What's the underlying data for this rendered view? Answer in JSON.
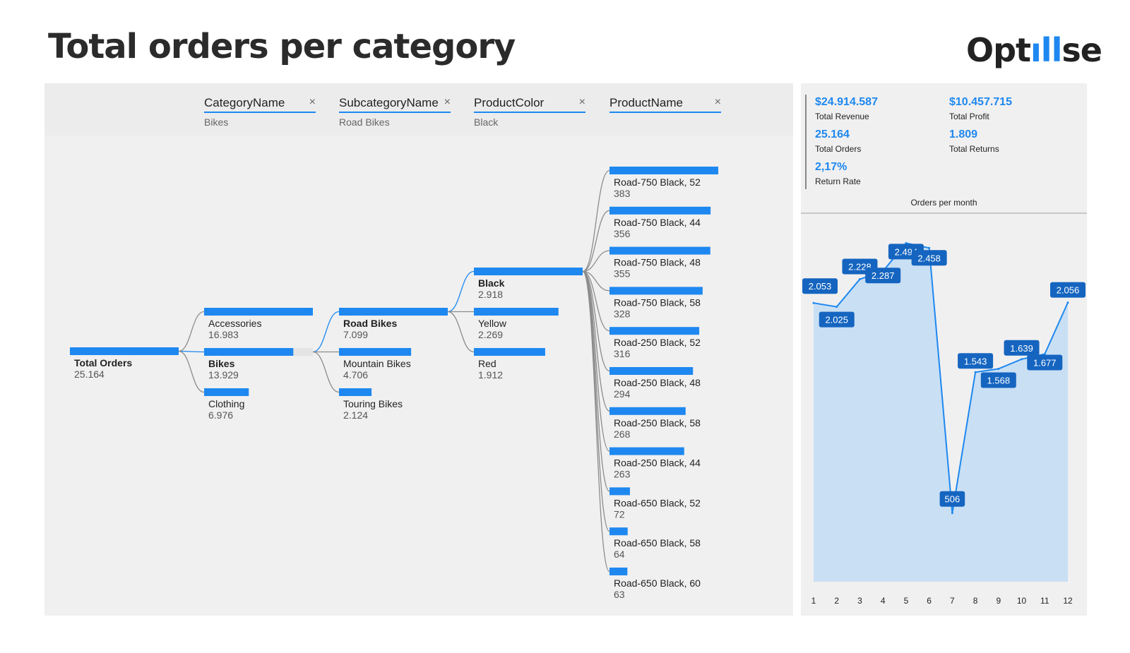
{
  "page": {
    "title": "Total orders per category"
  },
  "logo": {
    "text_pre": "Opt",
    "text_bars": "ıll",
    "text_post": "se"
  },
  "decomposition": {
    "levels": [
      {
        "name": "CategoryName",
        "filter": "Bikes",
        "close": "×"
      },
      {
        "name": "SubcategoryName",
        "filter": "Road Bikes",
        "close": "×"
      },
      {
        "name": "ProductColor",
        "filter": "Black",
        "close": "×"
      },
      {
        "name": "ProductName",
        "filter": "",
        "close": "×"
      }
    ],
    "root": {
      "label": "Total Orders",
      "value": "25.164"
    },
    "categories": [
      {
        "label": "Accessories",
        "value": "16.983",
        "n": 16983,
        "selected": false
      },
      {
        "label": "Bikes",
        "value": "13.929",
        "n": 13929,
        "selected": true
      },
      {
        "label": "Clothing",
        "value": "6.976",
        "n": 6976,
        "selected": false
      }
    ],
    "subcategories": [
      {
        "label": "Road Bikes",
        "value": "7.099",
        "n": 7099,
        "selected": true
      },
      {
        "label": "Mountain Bikes",
        "value": "4.706",
        "n": 4706,
        "selected": false
      },
      {
        "label": "Touring Bikes",
        "value": "2.124",
        "n": 2124,
        "selected": false
      }
    ],
    "colors": [
      {
        "label": "Black",
        "value": "2.918",
        "n": 2918,
        "selected": true
      },
      {
        "label": "Yellow",
        "value": "2.269",
        "n": 2269,
        "selected": false
      },
      {
        "label": "Red",
        "value": "1.912",
        "n": 1912,
        "selected": false
      }
    ],
    "products": [
      {
        "label": "Road-750 Black, 52",
        "value": "383",
        "n": 383
      },
      {
        "label": "Road-750 Black, 44",
        "value": "356",
        "n": 356
      },
      {
        "label": "Road-750 Black, 48",
        "value": "355",
        "n": 355
      },
      {
        "label": "Road-750 Black, 58",
        "value": "328",
        "n": 328
      },
      {
        "label": "Road-250 Black, 52",
        "value": "316",
        "n": 316
      },
      {
        "label": "Road-250 Black, 48",
        "value": "294",
        "n": 294
      },
      {
        "label": "Road-250 Black, 58",
        "value": "268",
        "n": 268
      },
      {
        "label": "Road-250 Black, 44",
        "value": "263",
        "n": 263
      },
      {
        "label": "Road-650 Black, 52",
        "value": "72",
        "n": 72
      },
      {
        "label": "Road-650 Black, 58",
        "value": "64",
        "n": 64
      },
      {
        "label": "Road-650 Black, 60",
        "value": "63",
        "n": 63
      }
    ]
  },
  "kpis": [
    {
      "value": "$24.914.587",
      "label": "Total Revenue"
    },
    {
      "value": "$10.457.715",
      "label": "Total Profit"
    },
    {
      "value": "25.164",
      "label": "Total Orders"
    },
    {
      "value": "1.809",
      "label": "Total Returns"
    },
    {
      "value": "2,17%",
      "label": "Return Rate"
    }
  ],
  "colors": {
    "accent": "#1e88f0",
    "label_bg": "#1565c0",
    "area": "#c9dff4",
    "panel": "#f0f0f0"
  },
  "chart_data": {
    "type": "area",
    "title": "Orders per month",
    "x": [
      1,
      2,
      3,
      4,
      5,
      6,
      7,
      8,
      9,
      10,
      11,
      12
    ],
    "series": [
      {
        "values": [
          2053,
          2025,
          2228,
          2287,
          2494,
          2458,
          506,
          1543,
          1568,
          1639,
          1677,
          2056
        ],
        "labels": [
          "2.053",
          "2.025",
          "2.228",
          "2.287",
          "2.494",
          "2.458",
          "506",
          "1.543",
          "1.568",
          "1.639",
          "1.677",
          "2.056"
        ]
      }
    ],
    "xlabel": "",
    "ylabel": "",
    "ylim": [
      0,
      2600
    ],
    "grid": false,
    "data_labels": true
  }
}
